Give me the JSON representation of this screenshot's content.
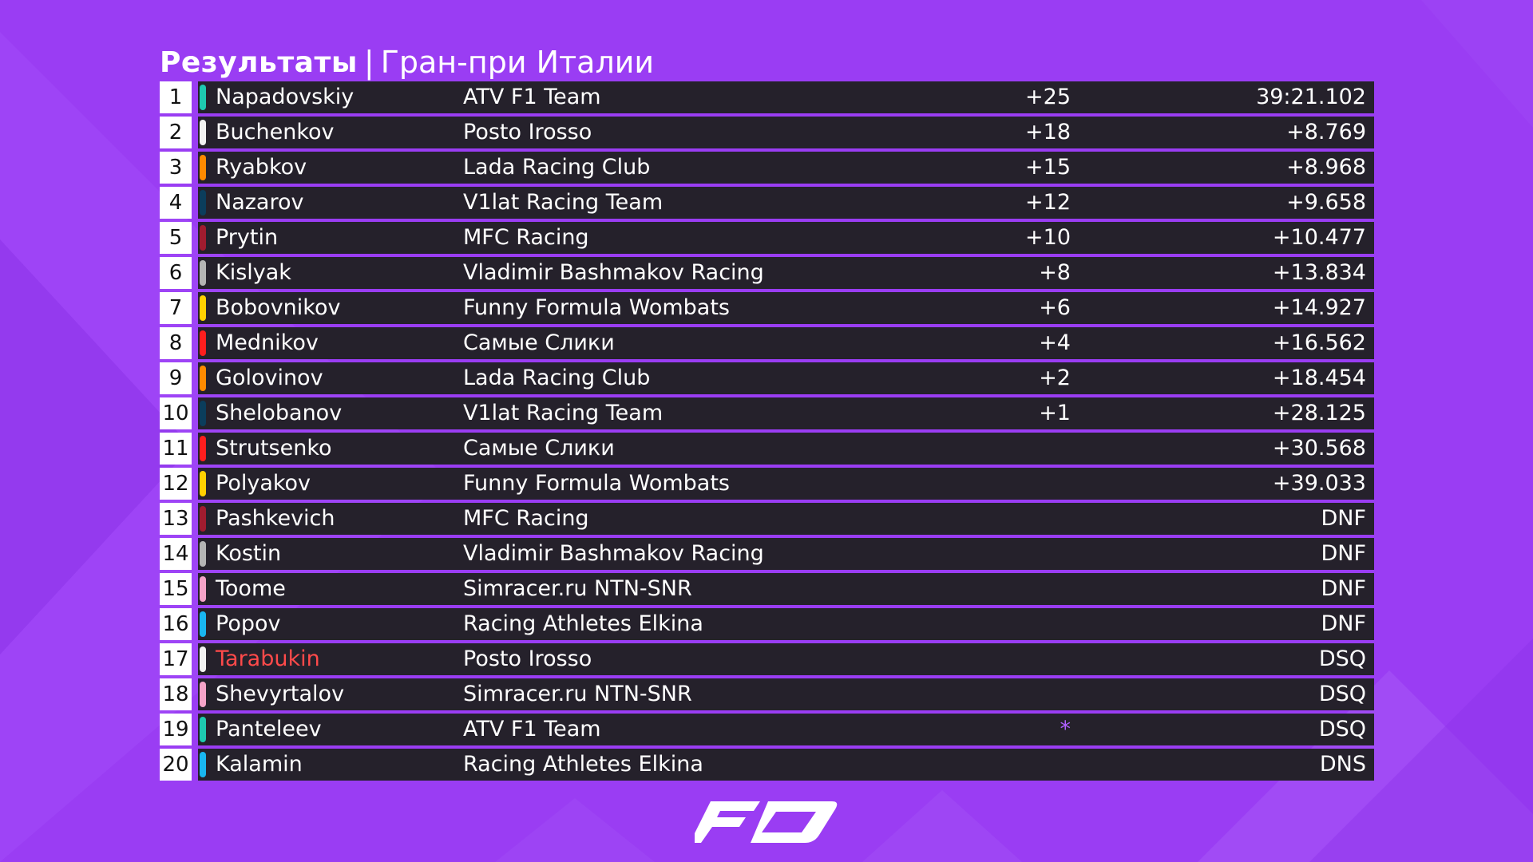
{
  "title": {
    "bold": "Результаты",
    "separator": "|",
    "subtitle": "Гран-при Италии"
  },
  "logo": {
    "text": "F0"
  },
  "accent": "#9a3df3",
  "results": [
    {
      "pos": "1",
      "driver": "Napadovskiy",
      "team": "ATV F1 Team",
      "points": "+25",
      "time": "39:21.102",
      "color": "#1ec9b0"
    },
    {
      "pos": "2",
      "driver": "Buchenkov",
      "team": "Posto Irosso",
      "points": "+18",
      "time": "+8.769",
      "color": "#f2f2f2"
    },
    {
      "pos": "3",
      "driver": "Ryabkov",
      "team": "Lada Racing Club",
      "points": "+15",
      "time": "+8.968",
      "color": "#ff8a00"
    },
    {
      "pos": "4",
      "driver": "Nazarov",
      "team": "V1lat Racing Team",
      "points": "+12",
      "time": "+9.658",
      "color": "#0b3d5c"
    },
    {
      "pos": "5",
      "driver": "Prytin",
      "team": "MFC Racing",
      "points": "+10",
      "time": "+10.477",
      "color": "#a11c2f"
    },
    {
      "pos": "6",
      "driver": "Kislyak",
      "team": "Vladimir Bashmakov Racing",
      "points": "+8",
      "time": "+13.834",
      "color": "#b4b4b4"
    },
    {
      "pos": "7",
      "driver": "Bobovnikov",
      "team": "Funny Formula Wombats",
      "points": "+6",
      "time": "+14.927",
      "color": "#ffd000"
    },
    {
      "pos": "8",
      "driver": "Mednikov",
      "team": "Самые Слики",
      "points": "+4",
      "time": "+16.562",
      "color": "#ff1e1e"
    },
    {
      "pos": "9",
      "driver": "Golovinov",
      "team": "Lada Racing Club",
      "points": "+2",
      "time": "+18.454",
      "color": "#ff8a00"
    },
    {
      "pos": "10",
      "driver": "Shelobanov",
      "team": "V1lat Racing Team",
      "points": "+1",
      "time": "+28.125",
      "color": "#0b3d5c"
    },
    {
      "pos": "11",
      "driver": "Strutsenko",
      "team": "Самые Слики",
      "points": "",
      "time": "+30.568",
      "color": "#ff1e1e"
    },
    {
      "pos": "12",
      "driver": "Polyakov",
      "team": "Funny Formula Wombats",
      "points": "",
      "time": "+39.033",
      "color": "#ffd000"
    },
    {
      "pos": "13",
      "driver": "Pashkevich",
      "team": "MFC Racing",
      "points": "",
      "time": "DNF",
      "color": "#a11c2f"
    },
    {
      "pos": "14",
      "driver": "Kostin",
      "team": "Vladimir Bashmakov Racing",
      "points": "",
      "time": "DNF",
      "color": "#b4b4b4"
    },
    {
      "pos": "15",
      "driver": "Toome",
      "team": "Simracer.ru NTN-SNR",
      "points": "",
      "time": "DNF",
      "color": "#f5a3c8"
    },
    {
      "pos": "16",
      "driver": "Popov",
      "team": "Racing Athletes Elkina",
      "points": "",
      "time": "DNF",
      "color": "#19b6f0"
    },
    {
      "pos": "17",
      "driver": "Tarabukin",
      "team": "Posto Irosso",
      "points": "",
      "time": "DSQ",
      "color": "#f2f2f2",
      "driver_color": "#ff4a4a"
    },
    {
      "pos": "18",
      "driver": "Shevyrtalov",
      "team": "Simracer.ru NTN-SNR",
      "points": "",
      "time": "DSQ",
      "color": "#f5a3c8"
    },
    {
      "pos": "19",
      "driver": "Panteleev",
      "team": "ATV F1 Team",
      "points": "*",
      "time": "DSQ",
      "color": "#1ec9b0",
      "points_color": "#b060ff"
    },
    {
      "pos": "20",
      "driver": "Kalamin",
      "team": "Racing Athletes Elkina",
      "points": "",
      "time": "DNS",
      "color": "#19b6f0"
    }
  ]
}
